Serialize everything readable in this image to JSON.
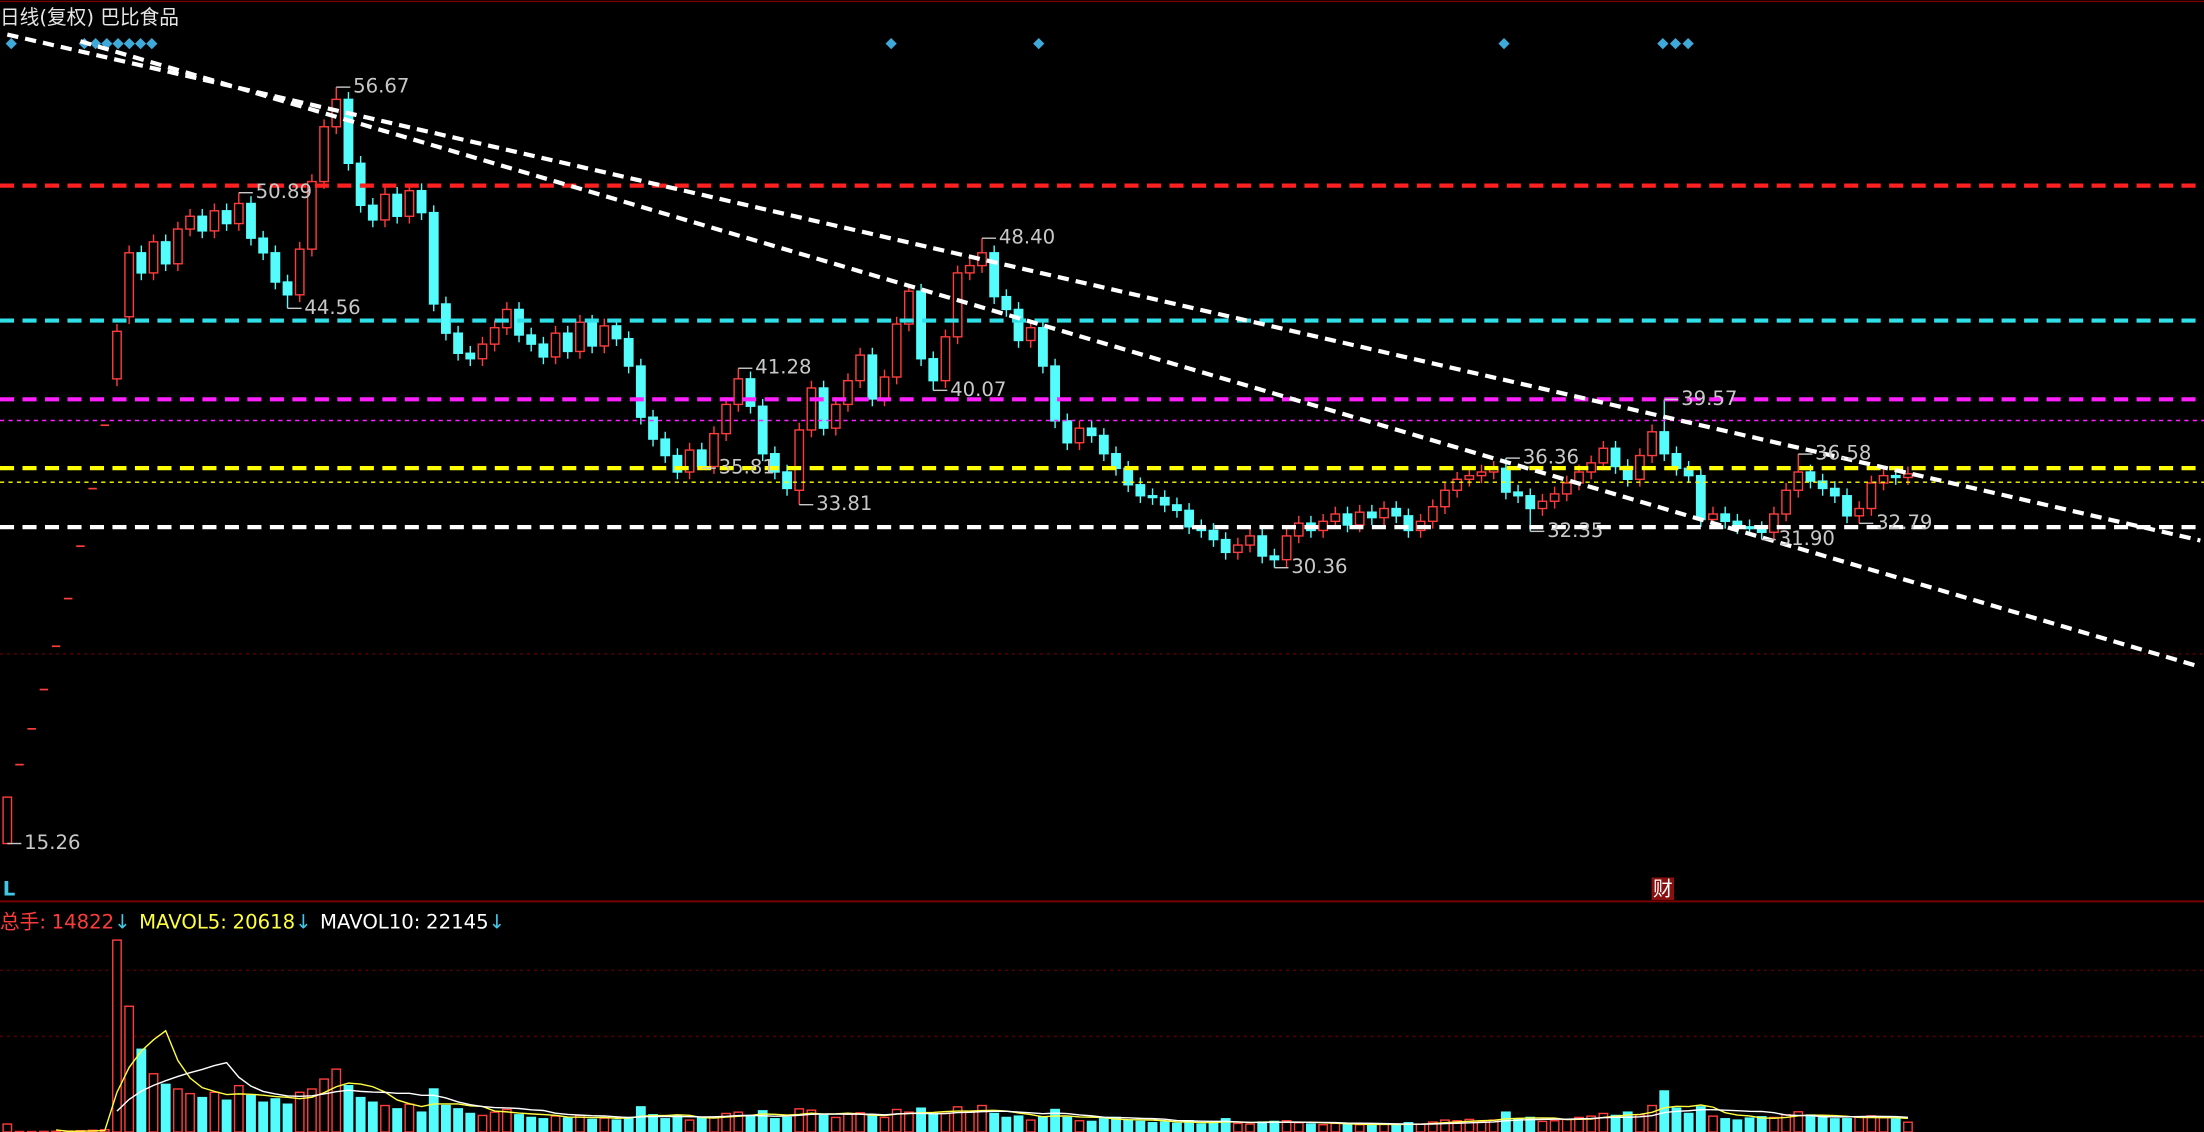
{
  "chart_data": {
    "type": "candlestick",
    "title": "日线(复权) 巴比食品",
    "xlim": [
      -0.6,
      180.3
    ],
    "ylim": [
      12.17,
      61.44
    ],
    "up_color": "#ff3c3c",
    "down_color": "#54fcfc",
    "open": [
      15.26,
      19.58,
      21.54,
      23.69,
      26.06,
      28.67,
      31.54,
      34.69,
      38.16,
      40.7,
      44.1,
      47.6,
      46.5,
      48.2,
      47.0,
      48.9,
      49.6,
      48.8,
      49.9,
      49.2,
      50.3,
      48.4,
      47.6,
      46.0,
      45.3,
      47.8,
      51.5,
      54.5,
      56.0,
      52.5,
      50.2,
      49.4,
      50.8,
      49.6,
      51.0,
      49.8,
      44.8,
      43.2,
      42.1,
      41.8,
      42.6,
      43.5,
      44.5,
      43.1,
      42.6,
      41.9,
      43.2,
      42.2,
      43.8,
      42.5,
      43.6,
      42.9,
      41.4,
      38.6,
      37.4,
      36.5,
      35.6,
      36.8,
      35.9,
      37.7,
      39.3,
      40.7,
      39.2,
      36.6,
      35.6,
      34.6,
      37.9,
      40.2,
      38.0,
      39.3,
      40.6,
      42.0,
      39.6,
      40.8,
      43.7,
      45.5,
      41.8,
      40.6,
      43.0,
      46.5,
      46.9,
      47.6,
      45.2,
      44.5,
      42.8,
      43.5,
      41.4,
      38.4,
      37.2,
      38.0,
      37.6,
      36.6,
      35.8,
      34.9,
      34.3,
      34.2,
      33.8,
      33.5,
      32.6,
      32.4,
      31.9,
      31.2,
      31.6,
      32.1,
      31.0,
      30.8,
      32.1,
      32.8,
      32.4,
      32.9,
      33.3,
      32.7,
      33.4,
      33.1,
      33.6,
      33.2,
      32.4,
      32.9,
      33.7,
      34.6,
      35.2,
      35.4,
      35.6,
      35.8,
      34.5,
      34.3,
      33.6,
      34.0,
      34.4,
      35.0,
      35.6,
      36.1,
      36.9,
      35.9,
      35.2,
      36.5,
      37.8,
      36.6,
      35.8,
      35.4,
      33.0,
      33.3,
      32.9,
      32.6,
      32.5,
      32.3,
      33.3,
      34.6,
      35.6,
      35.1,
      34.7,
      34.3,
      33.2,
      33.6,
      35.0,
      35.4,
      35.3
    ],
    "high": [
      17.8,
      19.58,
      21.54,
      23.69,
      26.06,
      28.67,
      31.54,
      34.69,
      38.16,
      43.7,
      48.0,
      48.0,
      48.6,
      48.6,
      49.3,
      50.0,
      50.0,
      50.3,
      50.3,
      50.89,
      50.7,
      48.8,
      48.0,
      46.4,
      48.2,
      51.9,
      54.9,
      56.67,
      56.4,
      52.9,
      50.6,
      51.2,
      51.2,
      51.4,
      51.4,
      50.2,
      45.2,
      43.6,
      42.5,
      43.0,
      43.9,
      44.9,
      44.9,
      43.5,
      43.0,
      43.6,
      43.6,
      44.2,
      44.2,
      44.0,
      44.0,
      43.3,
      41.8,
      39.0,
      37.8,
      36.9,
      37.2,
      37.2,
      38.1,
      39.7,
      41.28,
      41.1,
      39.6,
      37.0,
      36.0,
      38.3,
      40.6,
      40.6,
      39.7,
      41.0,
      42.4,
      42.4,
      41.2,
      44.1,
      45.9,
      45.9,
      42.2,
      43.4,
      46.9,
      47.3,
      48.4,
      48.0,
      45.6,
      44.9,
      43.9,
      43.9,
      41.8,
      38.8,
      38.4,
      38.4,
      38.0,
      37.0,
      36.2,
      35.3,
      34.7,
      34.6,
      34.2,
      33.9,
      33.0,
      32.8,
      32.3,
      32.0,
      32.5,
      32.5,
      31.4,
      32.5,
      33.2,
      33.2,
      33.3,
      33.7,
      33.7,
      33.8,
      33.8,
      34.0,
      34.0,
      33.6,
      33.3,
      34.1,
      35.0,
      35.6,
      35.8,
      36.0,
      36.2,
      36.36,
      34.9,
      34.7,
      34.4,
      34.8,
      35.4,
      36.0,
      36.5,
      37.3,
      37.3,
      36.3,
      36.9,
      38.2,
      39.57,
      37.0,
      36.2,
      35.8,
      33.7,
      33.7,
      33.3,
      33.0,
      32.9,
      33.7,
      35.0,
      36.58,
      36.0,
      35.5,
      35.1,
      34.7,
      34.0,
      35.4,
      35.8,
      35.8,
      35.9
    ],
    "low": [
      15.26,
      19.58,
      21.54,
      23.69,
      26.06,
      28.67,
      31.54,
      34.69,
      38.16,
      40.3,
      43.7,
      46.1,
      46.1,
      46.6,
      46.6,
      48.5,
      48.4,
      48.4,
      48.8,
      48.8,
      48.0,
      47.2,
      45.6,
      44.56,
      44.9,
      47.4,
      51.1,
      54.1,
      52.1,
      49.8,
      49.0,
      49.0,
      49.2,
      49.2,
      49.4,
      44.4,
      42.8,
      41.7,
      41.4,
      41.4,
      42.2,
      43.1,
      42.7,
      42.2,
      41.5,
      41.5,
      41.8,
      41.8,
      42.1,
      42.1,
      42.5,
      41.0,
      38.2,
      37.0,
      36.1,
      35.2,
      35.2,
      35.81,
      35.5,
      37.3,
      38.9,
      38.8,
      36.2,
      35.2,
      34.3,
      33.81,
      37.5,
      37.6,
      37.6,
      38.9,
      40.2,
      39.2,
      39.2,
      40.4,
      43.3,
      41.4,
      40.07,
      40.2,
      42.6,
      46.1,
      46.5,
      44.8,
      44.1,
      42.4,
      42.4,
      41.0,
      38.0,
      36.8,
      36.8,
      37.2,
      36.2,
      35.4,
      34.5,
      33.9,
      33.8,
      33.4,
      33.1,
      32.2,
      32.0,
      31.5,
      30.8,
      30.8,
      31.2,
      30.6,
      30.36,
      30.4,
      31.7,
      32.0,
      32.0,
      32.5,
      32.3,
      32.3,
      32.7,
      32.7,
      32.8,
      32.0,
      32.0,
      32.5,
      33.3,
      34.2,
      34.8,
      35.0,
      35.2,
      34.1,
      33.9,
      32.35,
      33.2,
      33.6,
      34.0,
      34.6,
      35.2,
      35.7,
      35.5,
      34.8,
      34.8,
      36.1,
      36.2,
      35.4,
      35.0,
      32.6,
      32.6,
      32.5,
      32.2,
      32.1,
      31.9,
      31.9,
      32.9,
      34.2,
      34.7,
      34.3,
      33.9,
      32.8,
      32.79,
      33.2,
      34.6,
      34.9,
      34.9
    ],
    "close": [
      17.8,
      19.58,
      21.54,
      23.69,
      26.06,
      28.67,
      31.54,
      34.69,
      38.16,
      43.3,
      47.6,
      46.5,
      48.2,
      47.0,
      48.9,
      49.6,
      48.8,
      49.9,
      49.2,
      50.3,
      48.4,
      47.6,
      46.0,
      45.3,
      47.8,
      51.5,
      54.5,
      56.0,
      52.5,
      50.2,
      49.4,
      50.8,
      49.6,
      51.0,
      49.8,
      44.8,
      43.2,
      42.1,
      41.8,
      42.6,
      43.5,
      44.5,
      43.1,
      42.6,
      41.9,
      43.2,
      42.2,
      43.8,
      42.5,
      43.6,
      42.9,
      41.4,
      38.6,
      37.4,
      36.5,
      35.6,
      36.8,
      35.9,
      37.7,
      39.3,
      40.7,
      39.2,
      36.6,
      35.6,
      34.7,
      37.9,
      40.2,
      38.0,
      39.3,
      40.6,
      42.0,
      39.6,
      40.8,
      43.7,
      45.5,
      41.8,
      40.6,
      43.0,
      46.5,
      46.9,
      47.6,
      45.2,
      44.5,
      42.8,
      43.5,
      41.4,
      38.4,
      37.2,
      38.0,
      37.6,
      36.6,
      35.8,
      34.9,
      34.3,
      34.2,
      33.8,
      33.5,
      32.6,
      32.4,
      31.9,
      31.2,
      31.6,
      32.1,
      31.0,
      30.8,
      32.1,
      32.8,
      32.4,
      32.9,
      33.3,
      32.7,
      33.4,
      33.1,
      33.6,
      33.2,
      32.4,
      32.9,
      33.7,
      34.6,
      35.2,
      35.4,
      35.6,
      35.8,
      34.5,
      34.3,
      33.6,
      34.0,
      34.4,
      35.0,
      35.6,
      36.1,
      36.9,
      35.9,
      35.2,
      36.5,
      37.8,
      36.6,
      35.8,
      35.4,
      33.0,
      33.3,
      32.9,
      32.6,
      32.5,
      32.3,
      33.3,
      34.6,
      35.6,
      35.1,
      34.7,
      34.3,
      33.2,
      33.6,
      35.0,
      35.4,
      35.3,
      35.5
    ],
    "high_labels": [
      null,
      null,
      null,
      null,
      null,
      null,
      null,
      null,
      null,
      null,
      null,
      null,
      null,
      null,
      null,
      null,
      null,
      null,
      null,
      "50.89",
      null,
      null,
      null,
      null,
      null,
      null,
      null,
      "56.67",
      null,
      null,
      null,
      null,
      null,
      null,
      null,
      null,
      null,
      null,
      null,
      null,
      null,
      null,
      null,
      null,
      null,
      null,
      null,
      null,
      null,
      null,
      null,
      null,
      null,
      null,
      null,
      null,
      null,
      null,
      null,
      null,
      "41.28",
      null,
      null,
      null,
      null,
      null,
      null,
      null,
      null,
      null,
      null,
      null,
      null,
      null,
      null,
      null,
      null,
      null,
      null,
      null,
      "48.40",
      null,
      null,
      null,
      null,
      null,
      null,
      null,
      null,
      null,
      null,
      null,
      null,
      null,
      null,
      null,
      null,
      null,
      null,
      null,
      null,
      null,
      null,
      null,
      null,
      null,
      null,
      null,
      null,
      null,
      null,
      null,
      null,
      null,
      null,
      null,
      null,
      null,
      null,
      null,
      null,
      null,
      null,
      "36.36",
      null,
      null,
      null,
      null,
      null,
      null,
      null,
      null,
      null,
      null,
      null,
      null,
      "39.57",
      null,
      null,
      null,
      null,
      null,
      null,
      null,
      null,
      null,
      null,
      "36.58",
      null,
      null,
      null,
      null,
      null,
      null,
      null,
      null,
      null
    ],
    "low_labels": [
      "15.26",
      null,
      null,
      null,
      null,
      null,
      null,
      null,
      null,
      null,
      null,
      null,
      null,
      null,
      null,
      null,
      null,
      null,
      null,
      null,
      null,
      null,
      null,
      "44.56",
      null,
      null,
      null,
      null,
      null,
      null,
      null,
      null,
      null,
      null,
      null,
      null,
      null,
      null,
      null,
      null,
      null,
      null,
      null,
      null,
      null,
      null,
      null,
      null,
      null,
      null,
      null,
      null,
      null,
      null,
      null,
      null,
      null,
      "35.81",
      null,
      null,
      null,
      null,
      null,
      null,
      null,
      "33.81",
      null,
      null,
      null,
      null,
      null,
      null,
      null,
      null,
      null,
      null,
      "40.07",
      null,
      null,
      null,
      null,
      null,
      null,
      null,
      null,
      null,
      null,
      null,
      null,
      null,
      null,
      null,
      null,
      null,
      null,
      null,
      null,
      null,
      null,
      null,
      null,
      null,
      null,
      null,
      "30.36",
      null,
      null,
      null,
      null,
      null,
      null,
      null,
      null,
      null,
      null,
      null,
      null,
      null,
      null,
      null,
      null,
      null,
      null,
      null,
      null,
      "32.35",
      null,
      null,
      null,
      null,
      null,
      null,
      null,
      null,
      null,
      null,
      null,
      null,
      null,
      null,
      null,
      null,
      null,
      null,
      "31.90",
      null,
      null,
      null,
      null,
      null,
      null,
      null,
      "32.79",
      null,
      null,
      null,
      null
    ],
    "hlines": [
      {
        "value": 51.28,
        "color": "#ff2020",
        "style": "thick"
      },
      {
        "value": 43.89,
        "color": "#30e0e8",
        "style": "thick"
      },
      {
        "value": 39.58,
        "color": "#ff20ff",
        "style": "thick"
      },
      {
        "value": 38.42,
        "color": "#ff20ff",
        "style": "thin"
      },
      {
        "value": 35.81,
        "color": "#ffff00",
        "style": "thick"
      },
      {
        "value": 35.04,
        "color": "#ffff00",
        "style": "thin"
      },
      {
        "value": 32.58,
        "color": "#ffffff",
        "style": "thick"
      }
    ],
    "trendlines": [
      {
        "x": [
          0,
          180
        ],
        "y": [
          59.55,
          31.85
        ],
        "color": "#ffffff"
      },
      {
        "x": [
          6,
          180
        ],
        "y": [
          59.18,
          24.93
        ],
        "color": "#ffffff"
      }
    ],
    "start_marker": "L",
    "finance_marker": "财",
    "volume": {
      "ylim": [
        0,
        340000
      ],
      "label": "总手:",
      "mavol5_label": "MAVOL5:",
      "mavol5": 20618,
      "mavol10_label": "MAVOL10:",
      "mavol10": 22145,
      "arrow": "↓",
      "values": [
        12000,
        800,
        700,
        900,
        1100,
        1500,
        2000,
        2600,
        3500,
        290000,
        190000,
        125000,
        88000,
        72000,
        65000,
        58000,
        52000,
        60000,
        48000,
        70000,
        55000,
        45000,
        50000,
        42000,
        60000,
        65000,
        80000,
        95000,
        70000,
        52000,
        45000,
        40000,
        35000,
        42000,
        30000,
        65000,
        40000,
        35000,
        28000,
        25000,
        30000,
        34000,
        26000,
        22000,
        20000,
        24000,
        21000,
        25000,
        19000,
        21000,
        18000,
        22000,
        38000,
        26000,
        20000,
        24000,
        18000,
        21000,
        22000,
        28000,
        30000,
        24000,
        32000,
        20000,
        22000,
        35000,
        33000,
        25000,
        22000,
        27000,
        29000,
        24000,
        22000,
        34000,
        30000,
        36000,
        26000,
        28000,
        38000,
        30000,
        40000,
        28000,
        22000,
        24000,
        18000,
        23000,
        34000,
        22000,
        17000,
        16000,
        20000,
        22000,
        18000,
        16000,
        14000,
        15000,
        13000,
        17000,
        12000,
        14000,
        20000,
        13000,
        12000,
        15000,
        16000,
        17000,
        14000,
        12000,
        11000,
        13000,
        12000,
        11000,
        10000,
        12000,
        11000,
        14000,
        12000,
        15000,
        18000,
        17000,
        19000,
        16000,
        18000,
        30000,
        20000,
        22000,
        16000,
        17000,
        19000,
        22000,
        24000,
        28000,
        25000,
        30000,
        26000,
        40000,
        62000,
        36000,
        28000,
        38000,
        24000,
        20000,
        18000,
        21000,
        23000,
        22000,
        26000,
        30500,
        25600,
        22400,
        19860,
        20000,
        22500,
        24300,
        21800,
        19668,
        14822
      ]
    }
  }
}
